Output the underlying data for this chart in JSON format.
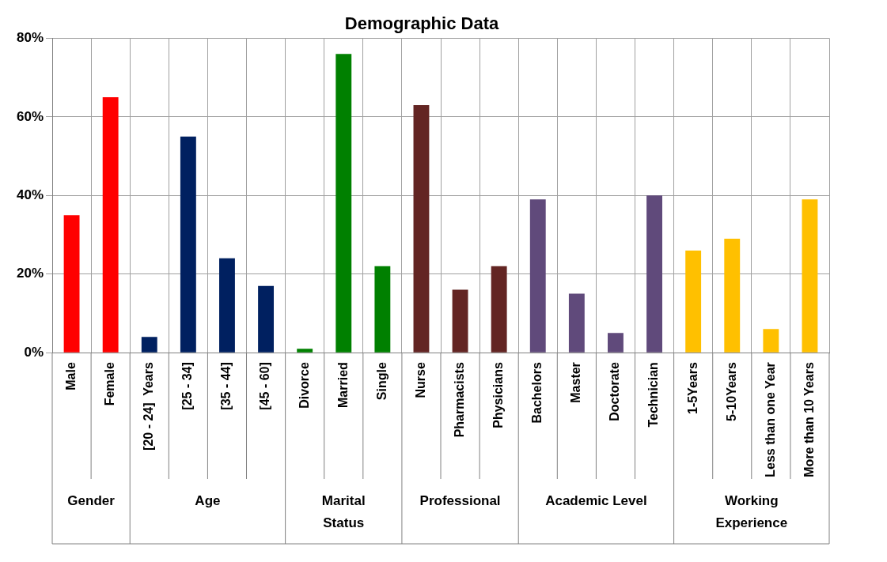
{
  "chart_data": {
    "type": "bar",
    "title": "Demographic Data",
    "categories": [
      "Male",
      "Female",
      "[20 - 24]  Years",
      "[25 - 34]",
      "[35 - 44]",
      "[45 - 60]",
      "Divorce",
      "Married",
      "Single",
      "Nurse",
      "Pharmacists",
      "Physicians",
      "Bachelors",
      "Master",
      "Doctorate",
      "Technician",
      "1-5Years",
      "5-10Years",
      "Less than one Year",
      "More than 10 Years"
    ],
    "values": [
      35,
      65,
      4,
      55,
      24,
      17,
      1,
      76,
      22,
      63,
      16,
      22,
      39,
      15,
      5,
      40,
      26,
      29,
      6,
      39
    ],
    "colors": [
      "#ff0000",
      "#ff0000",
      "#002060",
      "#002060",
      "#002060",
      "#002060",
      "#008000",
      "#008000",
      "#008000",
      "#632523",
      "#632523",
      "#632523",
      "#604a7b",
      "#604a7b",
      "#604a7b",
      "#604a7b",
      "#ffc000",
      "#ffc000",
      "#ffc000",
      "#ffc000"
    ],
    "ylim": [
      0,
      80
    ],
    "yticks": [
      {
        "value": 0,
        "label": "0%"
      },
      {
        "value": 20,
        "label": "20%"
      },
      {
        "value": 40,
        "label": "40%"
      },
      {
        "value": 60,
        "label": "60%"
      },
      {
        "value": 80,
        "label": "80%"
      }
    ],
    "grid": true,
    "legend": false,
    "annotations": [
      "Gender",
      "Age",
      "Marital Status",
      "Professional",
      "Academic Level",
      "Working Experience"
    ]
  }
}
